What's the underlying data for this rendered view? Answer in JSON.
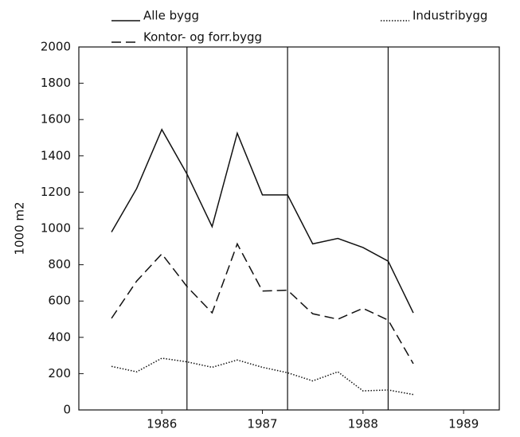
{
  "chart_data": {
    "type": "line",
    "y_label": "1000 m2",
    "x": [
      1985.5,
      1985.75,
      1986,
      1986.25,
      1986.5,
      1986.75,
      1987,
      1987.25,
      1987.5,
      1987.75,
      1988,
      1988.25,
      1988.5
    ],
    "series": [
      {
        "name": "Alle bygg",
        "color": "#111111",
        "dash": "solid",
        "values": [
          980,
          1220,
          1545,
          1300,
          1010,
          1525,
          1185,
          1185,
          915,
          945,
          895,
          820,
          535
        ]
      },
      {
        "name": "Industribygg",
        "color": "#111111",
        "dash": "dotted",
        "values": [
          240,
          210,
          285,
          265,
          235,
          275,
          235,
          205,
          160,
          210,
          105,
          110,
          85
        ]
      },
      {
        "name": "Kontor- og forr.bygg",
        "color": "#111111",
        "dash": "dashed",
        "values": [
          505,
          710,
          860,
          680,
          535,
          915,
          655,
          660,
          530,
          500,
          560,
          495,
          255
        ]
      }
    ],
    "xlim": [
      1985.175,
      1989.355
    ],
    "xticks": [
      1986,
      1987,
      1988,
      1989
    ],
    "ylim": [
      0,
      2000
    ],
    "yticks": [
      0,
      200,
      400,
      600,
      800,
      1000,
      1200,
      1400,
      1600,
      1800,
      2000
    ],
    "vlines": [
      1986.25,
      1987.25,
      1988.25
    ]
  }
}
